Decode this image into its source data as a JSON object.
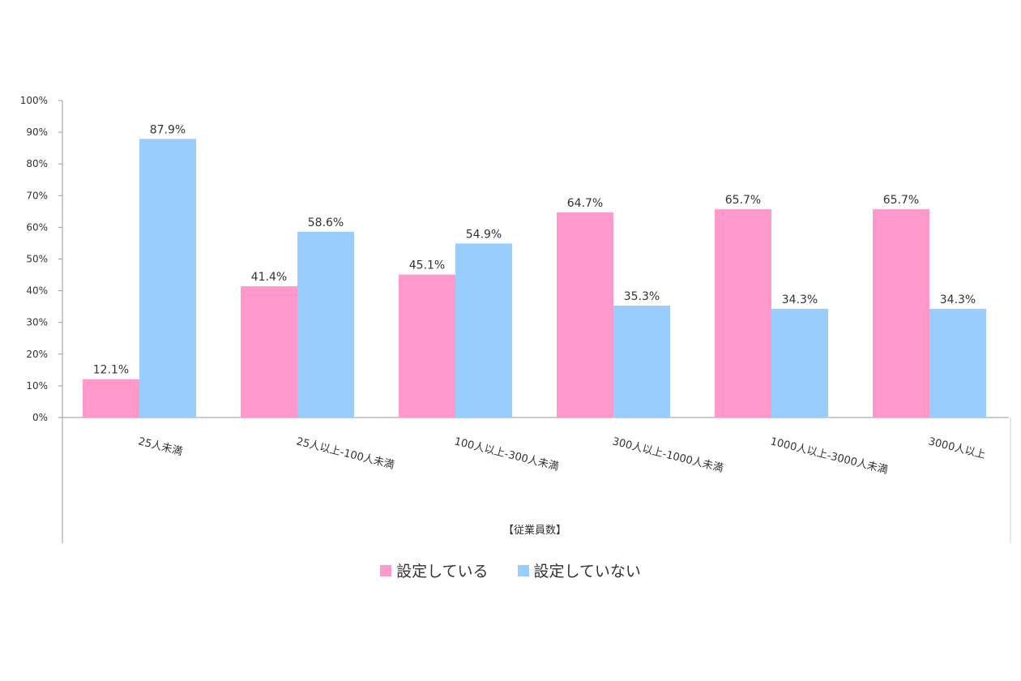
{
  "chart_data": {
    "type": "bar",
    "categories": [
      "25人未満",
      "25人以上-100人未満",
      "100人以上-300人未満",
      "300人以上-1000人未満",
      "1000人以上-3000人未満",
      "3000人以上"
    ],
    "series": [
      {
        "name": "設定している",
        "values": [
          12.1,
          41.4,
          45.1,
          64.7,
          65.7,
          65.7
        ],
        "color": "#ff99cc"
      },
      {
        "name": "設定していない",
        "values": [
          87.9,
          58.6,
          54.9,
          35.3,
          34.3,
          34.3
        ],
        "color": "#99ccff"
      }
    ],
    "data_labels": [
      [
        "12.1%",
        "41.4%",
        "45.1%",
        "64.7%",
        "65.7%",
        "65.7%"
      ],
      [
        "87.9%",
        "58.6%",
        "54.9%",
        "35.3%",
        "34.3%",
        "34.3%"
      ]
    ],
    "yticks": [
      "0%",
      "10%",
      "20%",
      "30%",
      "40%",
      "50%",
      "60%",
      "70%",
      "80%",
      "90%",
      "100%"
    ],
    "ylim": [
      0,
      100
    ],
    "xlabel": "【従業員数】",
    "ylabel": "",
    "title": "",
    "grid": false,
    "legend_position": "bottom"
  }
}
